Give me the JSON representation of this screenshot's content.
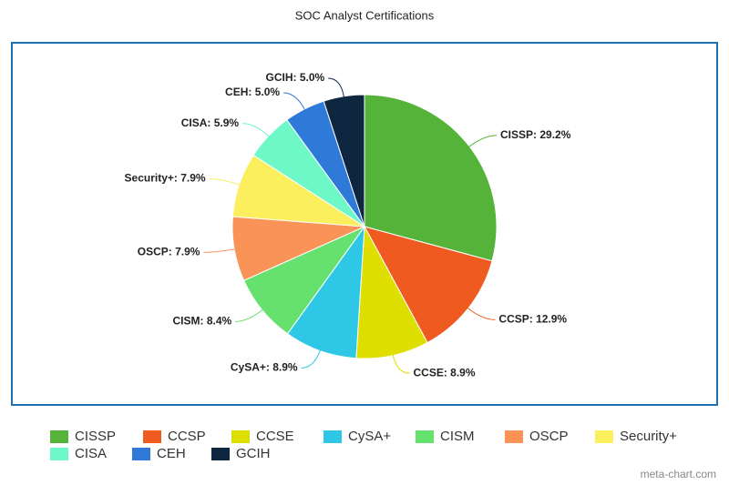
{
  "chart_data": {
    "type": "pie",
    "title": "SOC Analyst Certifications",
    "categories": [
      "CISSP",
      "CCSP",
      "CCSE",
      "CySA+",
      "CISM",
      "OSCP",
      "Security+",
      "CISA",
      "CEH",
      "GCIH"
    ],
    "values": [
      29.2,
      12.9,
      8.9,
      8.9,
      8.4,
      7.9,
      7.9,
      5.9,
      5.0,
      5.0
    ],
    "value_labels": [
      "CISSP: 29.2%",
      "CCSP: 12.9%",
      "CCSE: 8.9%",
      "CySA+: 8.9%",
      "CISM: 8.4%",
      "OSCP: 7.9%",
      "Security+: 7.9%",
      "CISA: 5.9%",
      "CEH: 5.0%",
      "GCIH: 5.0%"
    ],
    "colors": [
      "#56b33a",
      "#ee5a1f",
      "#dede00",
      "#2ec8e6",
      "#66e06f",
      "#f99357",
      "#fbef5e",
      "#6ff8c7",
      "#2f79d9",
      "#0e2640"
    ],
    "legend": "bottom",
    "credit": "meta-chart.com"
  }
}
